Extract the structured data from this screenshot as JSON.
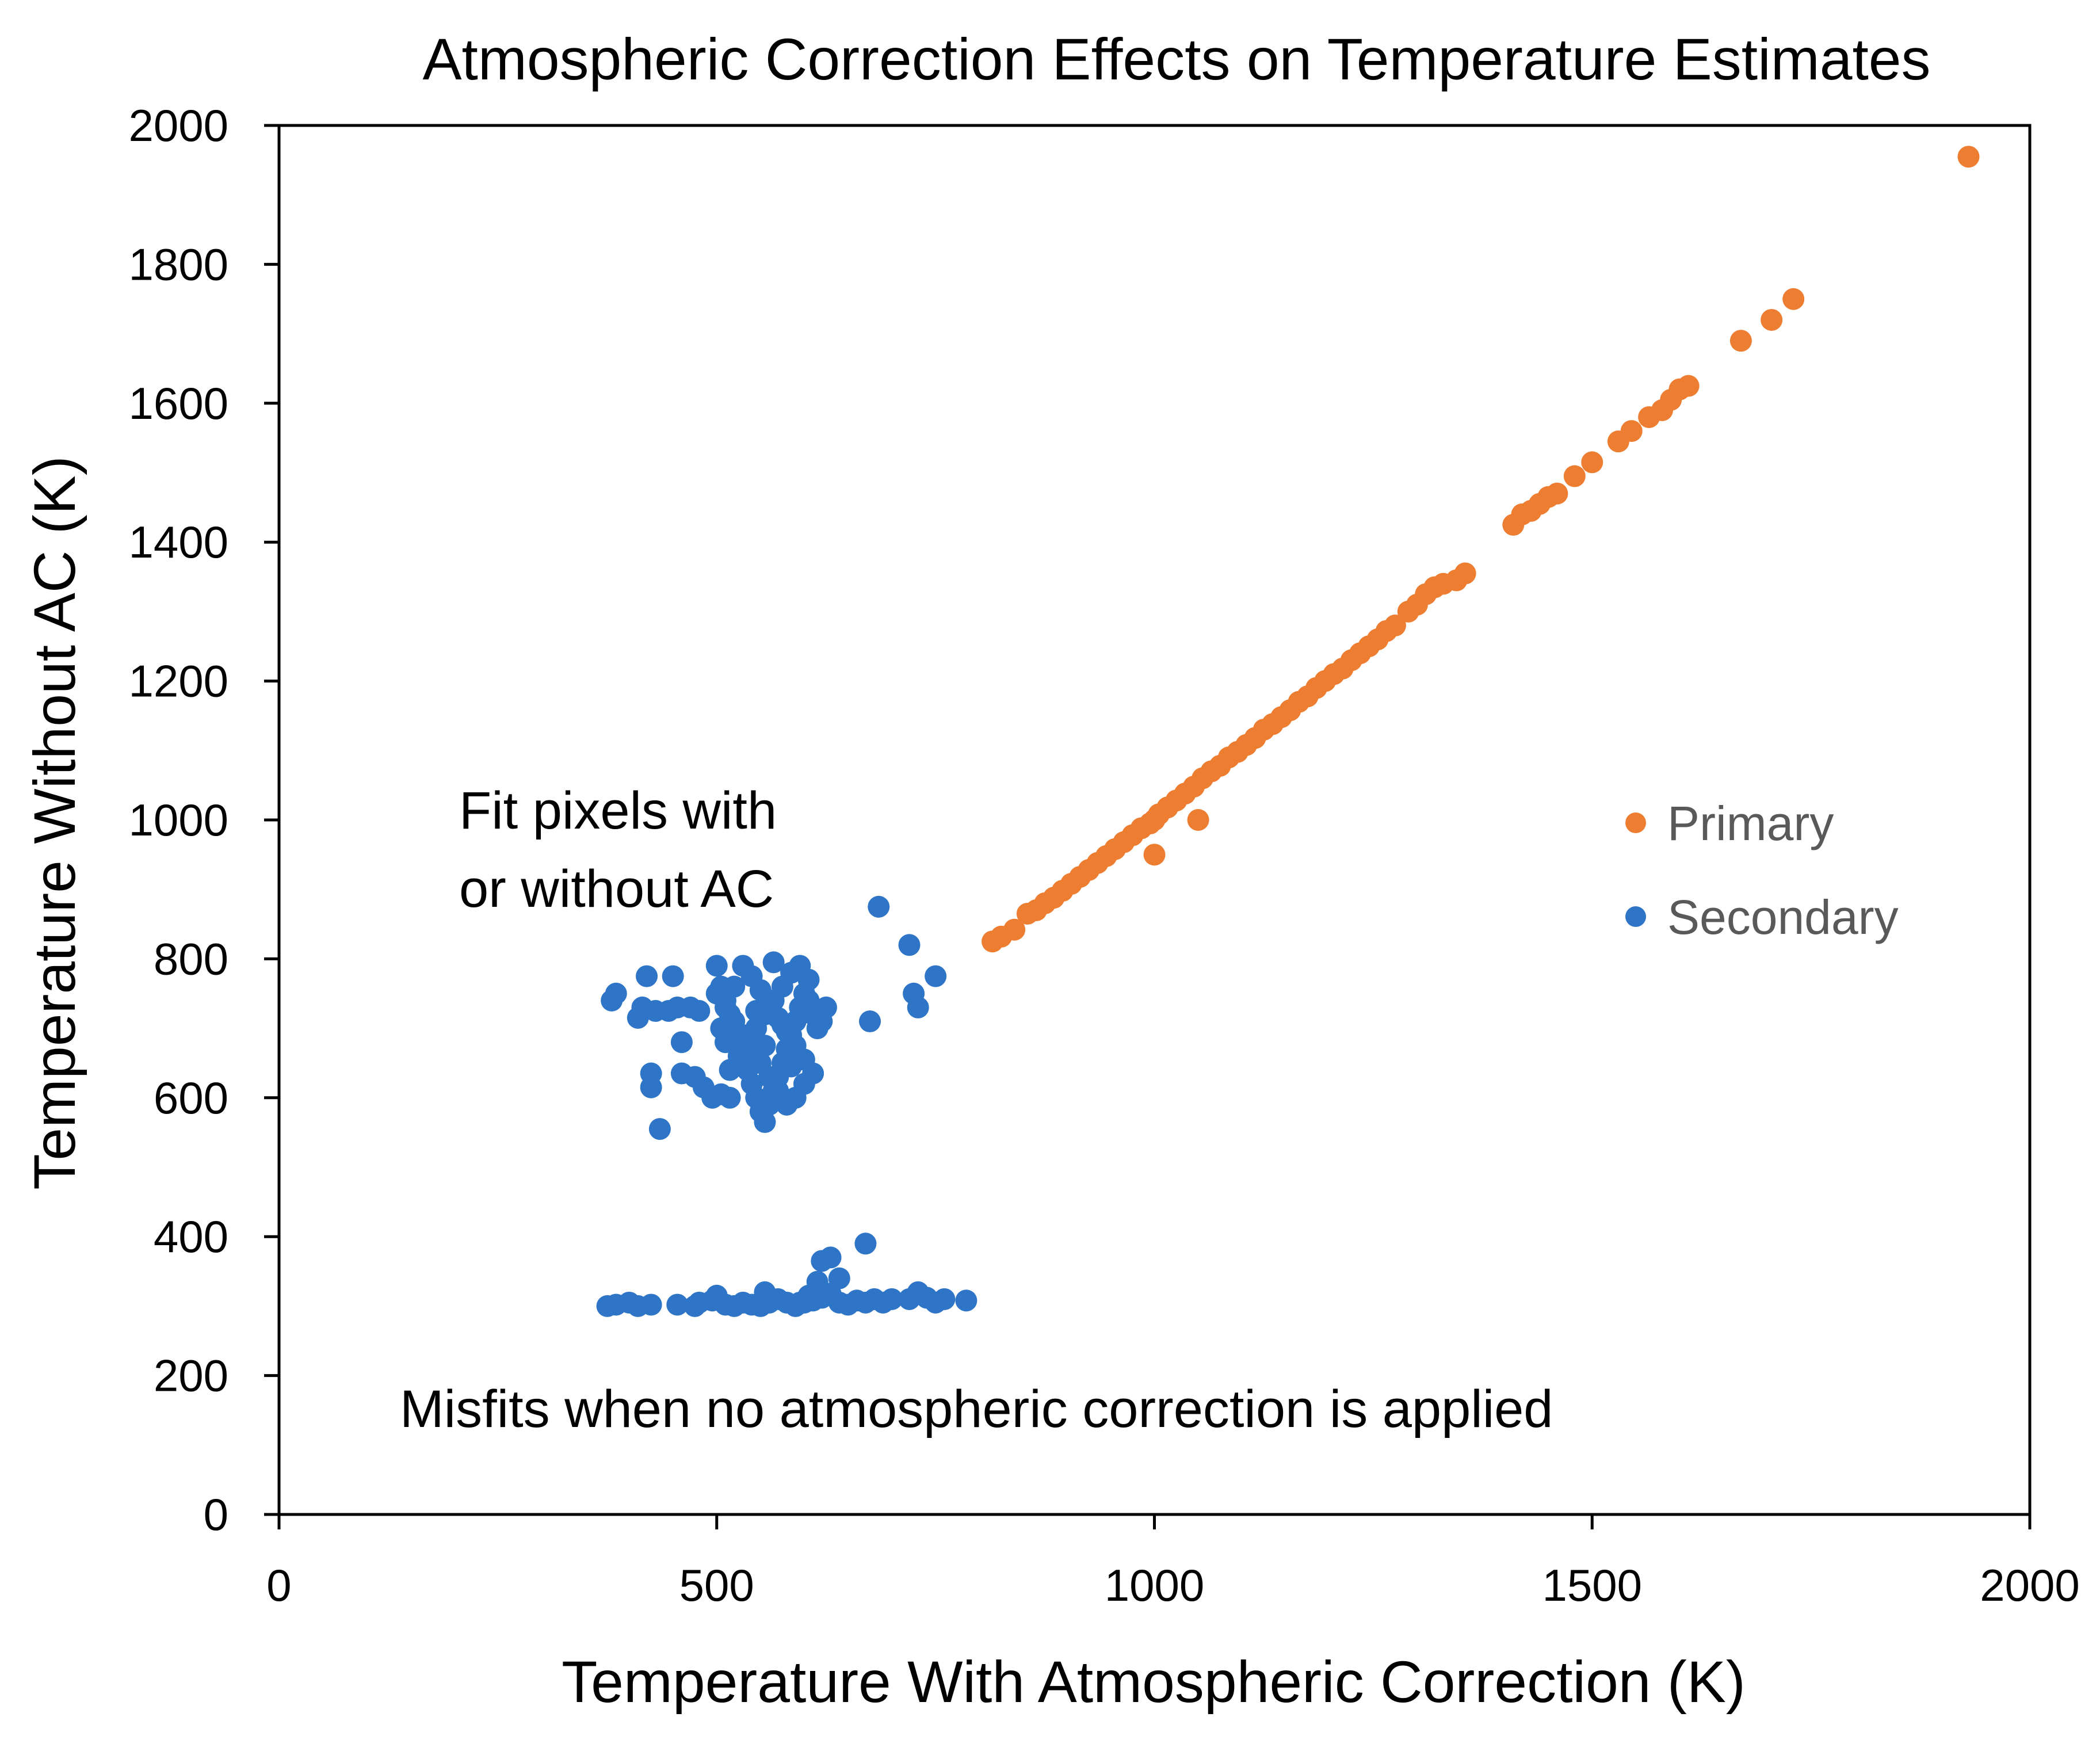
{
  "chart_data": {
    "type": "scatter",
    "title": "Atmospheric Correction Effects on Temperature Estimates",
    "xlabel": "Temperature With Atmospheric Correction (K)",
    "ylabel": "Temperature Without AC (K)",
    "xlim": [
      0,
      2000
    ],
    "ylim": [
      0,
      2000
    ],
    "xticks": [
      "0",
      "500",
      "1000",
      "1500",
      "2000"
    ],
    "yticks": [
      "0",
      "200",
      "400",
      "600",
      "800",
      "1000",
      "1200",
      "1400",
      "1600",
      "1800",
      "2000"
    ],
    "grid": false,
    "legend_position": "right",
    "annotations": [
      {
        "lines": [
          "Fit pixels with",
          "or without AC"
        ]
      },
      {
        "lines": [
          "Misfits when no atmospheric correction is applied"
        ]
      }
    ],
    "series": [
      {
        "name": "Primary",
        "color": "#ED7D31",
        "points": [
          [
            815,
            825
          ],
          [
            825,
            832
          ],
          [
            840,
            842
          ],
          [
            855,
            865
          ],
          [
            865,
            870
          ],
          [
            875,
            880
          ],
          [
            885,
            888
          ],
          [
            895,
            898
          ],
          [
            905,
            908
          ],
          [
            915,
            918
          ],
          [
            925,
            928
          ],
          [
            935,
            938
          ],
          [
            945,
            948
          ],
          [
            955,
            958
          ],
          [
            965,
            968
          ],
          [
            975,
            978
          ],
          [
            985,
            988
          ],
          [
            995,
            995
          ],
          [
            1000,
            1000
          ],
          [
            1005,
            1008
          ],
          [
            1015,
            1018
          ],
          [
            1025,
            1028
          ],
          [
            1035,
            1038
          ],
          [
            1045,
            1048
          ],
          [
            1055,
            1060
          ],
          [
            1065,
            1070
          ],
          [
            1075,
            1078
          ],
          [
            1085,
            1090
          ],
          [
            1095,
            1098
          ],
          [
            1105,
            1108
          ],
          [
            1115,
            1118
          ],
          [
            1125,
            1130
          ],
          [
            1135,
            1138
          ],
          [
            1145,
            1148
          ],
          [
            1155,
            1158
          ],
          [
            1165,
            1170
          ],
          [
            1175,
            1178
          ],
          [
            1185,
            1190
          ],
          [
            1195,
            1200
          ],
          [
            1205,
            1210
          ],
          [
            1215,
            1218
          ],
          [
            1225,
            1230
          ],
          [
            1235,
            1240
          ],
          [
            1245,
            1250
          ],
          [
            1255,
            1260
          ],
          [
            1265,
            1272
          ],
          [
            1275,
            1280
          ],
          [
            1290,
            1300
          ],
          [
            1300,
            1310
          ],
          [
            1310,
            1325
          ],
          [
            1320,
            1335
          ],
          [
            1330,
            1340
          ],
          [
            1345,
            1345
          ],
          [
            1355,
            1355
          ],
          [
            1410,
            1425
          ],
          [
            1420,
            1440
          ],
          [
            1430,
            1445
          ],
          [
            1440,
            1455
          ],
          [
            1450,
            1465
          ],
          [
            1460,
            1470
          ],
          [
            1480,
            1495
          ],
          [
            1500,
            1515
          ],
          [
            1530,
            1545
          ],
          [
            1545,
            1560
          ],
          [
            1565,
            1580
          ],
          [
            1580,
            1590
          ],
          [
            1590,
            1605
          ],
          [
            1600,
            1620
          ],
          [
            1610,
            1625
          ],
          [
            1670,
            1690
          ],
          [
            1705,
            1720
          ],
          [
            1730,
            1750
          ],
          [
            1930,
            1955
          ],
          [
            1000,
            950
          ],
          [
            1050,
            1000
          ]
        ]
      },
      {
        "name": "Secondary",
        "color": "#2E75C7",
        "points": [
          [
            380,
            740
          ],
          [
            385,
            750
          ],
          [
            410,
            715
          ],
          [
            415,
            730
          ],
          [
            420,
            775
          ],
          [
            430,
            725
          ],
          [
            445,
            725
          ],
          [
            450,
            775
          ],
          [
            455,
            730
          ],
          [
            460,
            680
          ],
          [
            470,
            730
          ],
          [
            480,
            725
          ],
          [
            425,
            635
          ],
          [
            425,
            615
          ],
          [
            435,
            555
          ],
          [
            460,
            635
          ],
          [
            475,
            630
          ],
          [
            485,
            615
          ],
          [
            495,
            600
          ],
          [
            505,
            605
          ],
          [
            515,
            600
          ],
          [
            500,
            790
          ],
          [
            505,
            760
          ],
          [
            510,
            740
          ],
          [
            515,
            720
          ],
          [
            520,
            700
          ],
          [
            525,
            680
          ],
          [
            530,
            660
          ],
          [
            535,
            640
          ],
          [
            540,
            620
          ],
          [
            545,
            600
          ],
          [
            550,
            580
          ],
          [
            555,
            565
          ],
          [
            560,
            590
          ],
          [
            565,
            610
          ],
          [
            570,
            630
          ],
          [
            575,
            650
          ],
          [
            580,
            670
          ],
          [
            585,
            690
          ],
          [
            590,
            710
          ],
          [
            595,
            730
          ],
          [
            600,
            750
          ],
          [
            605,
            770
          ],
          [
            595,
            790
          ],
          [
            585,
            780
          ],
          [
            575,
            760
          ],
          [
            565,
            740
          ],
          [
            555,
            720
          ],
          [
            545,
            700
          ],
          [
            535,
            680
          ],
          [
            525,
            660
          ],
          [
            515,
            640
          ],
          [
            505,
            700
          ],
          [
            510,
            680
          ],
          [
            520,
            760
          ],
          [
            530,
            790
          ],
          [
            540,
            775
          ],
          [
            550,
            755
          ],
          [
            560,
            735
          ],
          [
            570,
            715
          ],
          [
            580,
            695
          ],
          [
            590,
            675
          ],
          [
            600,
            655
          ],
          [
            610,
            635
          ],
          [
            600,
            620
          ],
          [
            590,
            600
          ],
          [
            580,
            590
          ],
          [
            570,
            610
          ],
          [
            560,
            630
          ],
          [
            550,
            650
          ],
          [
            540,
            670
          ],
          [
            530,
            690
          ],
          [
            520,
            710
          ],
          [
            510,
            730
          ],
          [
            500,
            750
          ],
          [
            610,
            720
          ],
          [
            615,
            700
          ],
          [
            620,
            710
          ],
          [
            625,
            730
          ],
          [
            605,
            740
          ],
          [
            565,
            795
          ],
          [
            575,
            705
          ],
          [
            585,
            645
          ],
          [
            555,
            675
          ],
          [
            545,
            725
          ],
          [
            675,
            710
          ],
          [
            685,
            875
          ],
          [
            720,
            820
          ],
          [
            725,
            750
          ],
          [
            730,
            730
          ],
          [
            750,
            775
          ],
          [
            375,
            300
          ],
          [
            385,
            302
          ],
          [
            400,
            305
          ],
          [
            410,
            300
          ],
          [
            425,
            302
          ],
          [
            455,
            302
          ],
          [
            475,
            300
          ],
          [
            480,
            305
          ],
          [
            495,
            308
          ],
          [
            500,
            315
          ],
          [
            510,
            302
          ],
          [
            520,
            300
          ],
          [
            530,
            305
          ],
          [
            540,
            302
          ],
          [
            550,
            300
          ],
          [
            560,
            305
          ],
          [
            570,
            310
          ],
          [
            580,
            305
          ],
          [
            590,
            300
          ],
          [
            600,
            305
          ],
          [
            610,
            308
          ],
          [
            620,
            312
          ],
          [
            630,
            318
          ],
          [
            640,
            305
          ],
          [
            650,
            302
          ],
          [
            660,
            308
          ],
          [
            670,
            305
          ],
          [
            680,
            310
          ],
          [
            690,
            305
          ],
          [
            700,
            310
          ],
          [
            720,
            310
          ],
          [
            730,
            320
          ],
          [
            740,
            312
          ],
          [
            750,
            305
          ],
          [
            760,
            310
          ],
          [
            785,
            308
          ],
          [
            555,
            320
          ],
          [
            595,
            305
          ],
          [
            605,
            315
          ],
          [
            615,
            335
          ],
          [
            620,
            365
          ],
          [
            630,
            370
          ],
          [
            640,
            340
          ],
          [
            670,
            390
          ]
        ]
      }
    ]
  }
}
